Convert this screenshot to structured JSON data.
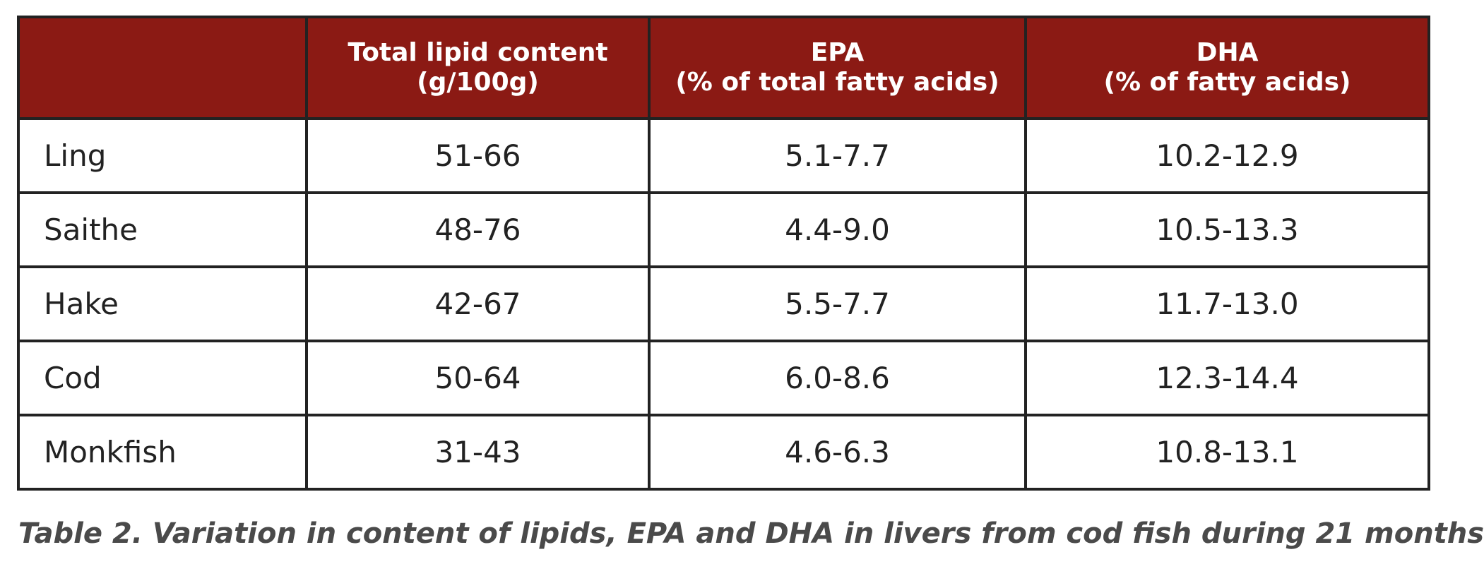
{
  "table": {
    "headers": [
      {
        "line1": "",
        "line2": ""
      },
      {
        "line1": "Total lipid content",
        "line2": "(g/100g)"
      },
      {
        "line1": "EPA",
        "line2": "(% of total fatty acids)"
      },
      {
        "line1": "DHA",
        "line2": "(% of fatty acids)"
      }
    ],
    "rows": [
      {
        "fish": "Ling",
        "lipid": "51-66",
        "epa": "5.1-7.7",
        "dha": "10.2-12.9"
      },
      {
        "fish": "Saithe",
        "lipid": "48-76",
        "epa": "4.4-9.0",
        "dha": "10.5-13.3"
      },
      {
        "fish": "Hake",
        "lipid": "42-67",
        "epa": "5.5-7.7",
        "dha": "11.7-13.0"
      },
      {
        "fish": "Cod",
        "lipid": "50-64",
        "epa": "6.0-8.6",
        "dha": "12.3-14.4"
      },
      {
        "fish": "Monkfish",
        "lipid": "31-43",
        "epa": "4.6-6.3",
        "dha": "10.8-13.1"
      }
    ]
  },
  "caption": "Table 2. Variation in content of lipids, EPA and DHA in livers from cod fish during 21 months",
  "colors": {
    "header_bg": "#8b1a14",
    "border": "#222222",
    "caption_text": "#4a4a4a"
  }
}
